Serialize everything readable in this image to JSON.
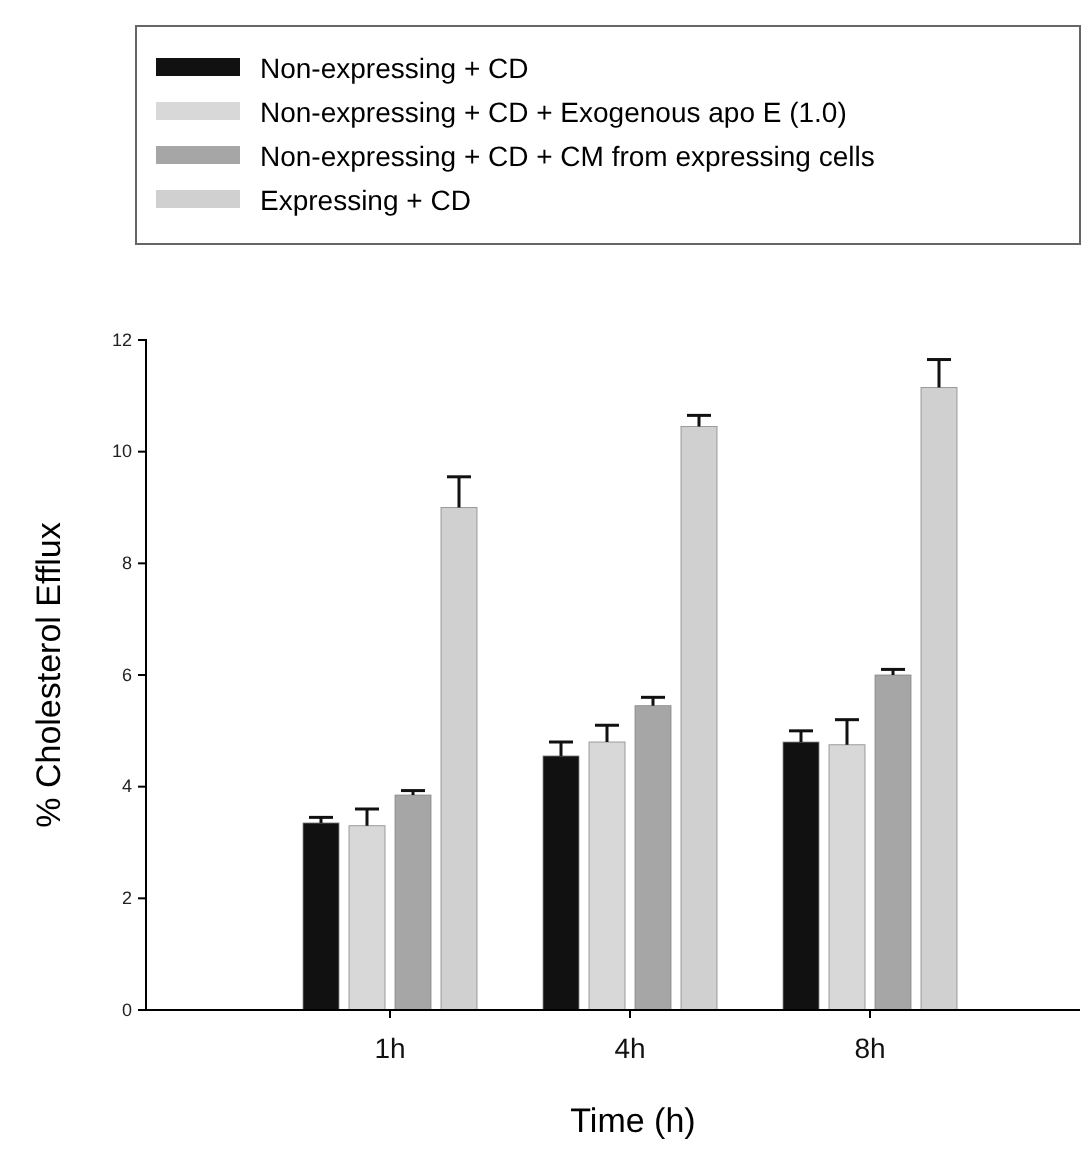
{
  "chart_data": {
    "type": "bar",
    "xlabel": "Time (h)",
    "ylabel": "% Cholesterol Efflux",
    "categories": [
      "1h",
      "4h",
      "8h"
    ],
    "ylim": [
      0,
      12
    ],
    "yticks": [
      0,
      2,
      4,
      6,
      8,
      10,
      12
    ],
    "legend": "top",
    "grid": false,
    "series": [
      {
        "name": "Non-expressing + CD",
        "color": "#111111",
        "values": [
          3.35,
          4.55,
          4.8
        ],
        "errors": [
          [
            3.35,
            3.45
          ],
          [
            4.55,
            4.8
          ],
          [
            4.8,
            5.0
          ]
        ]
      },
      {
        "name": "Non-expressing + CD + Exogenous apo E (1.0)",
        "color": "#d8d8d8",
        "values": [
          3.3,
          4.8,
          4.75
        ],
        "errors": [
          [
            3.3,
            3.6
          ],
          [
            4.8,
            5.1
          ],
          [
            4.75,
            5.2
          ]
        ]
      },
      {
        "name": "Non-expressing + CD + CM from expressing cells",
        "color": "#a6a6a6",
        "values": [
          3.85,
          5.45,
          6.0
        ],
        "errors": [
          [
            3.85,
            3.93
          ],
          [
            5.45,
            5.6
          ],
          [
            6.0,
            6.1
          ]
        ]
      },
      {
        "name": "Expressing + CD",
        "color": "#d0d0d0",
        "values": [
          9.0,
          10.45,
          11.15
        ],
        "errors": [
          [
            9.0,
            9.55
          ],
          [
            10.45,
            10.65
          ],
          [
            11.15,
            11.65
          ]
        ]
      }
    ]
  }
}
